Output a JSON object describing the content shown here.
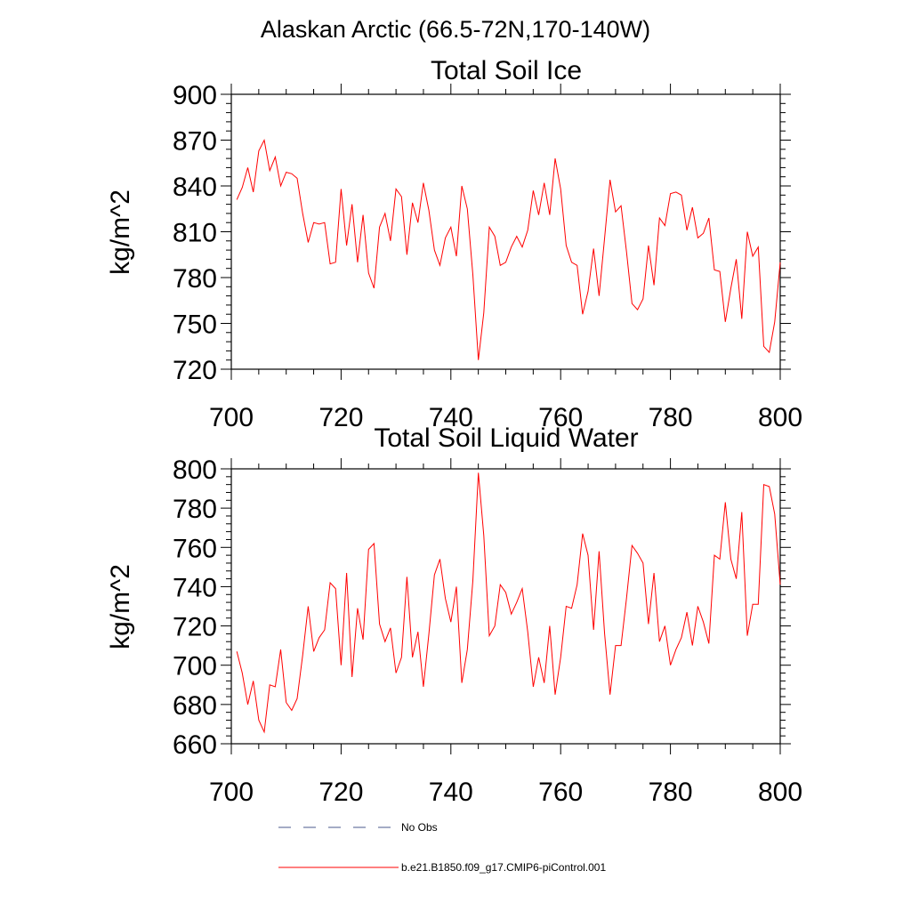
{
  "supertitle": "Alaskan Arctic (66.5-72N,170-140W)",
  "colors": {
    "model": "#ff0000",
    "obs": "#4b5a8c",
    "axis": "#000000"
  },
  "legend": [
    {
      "label": "No Obs",
      "style": "dashed",
      "color": "#4b5a8c"
    },
    {
      "label": "b.e21.B1850.f09_g17.CMIP6-piControl.001",
      "style": "solid",
      "color": "#ff0000"
    }
  ],
  "chart_data": [
    {
      "type": "line",
      "title": "Total Soil Ice",
      "xlabel": "",
      "ylabel": "kg/m^2",
      "xlim": [
        700,
        800
      ],
      "ylim": [
        720,
        900
      ],
      "xticks": [
        700,
        720,
        740,
        760,
        780,
        800
      ],
      "yticks": [
        720,
        750,
        780,
        810,
        840,
        870,
        900
      ],
      "x_start": 701,
      "series": [
        {
          "values": [
            831,
            839,
            852,
            836,
            863,
            870,
            850,
            859,
            840,
            849,
            848,
            845,
            822,
            803,
            816,
            815,
            816,
            789,
            790,
            838,
            801,
            828,
            790,
            821,
            783,
            773,
            813,
            822,
            804,
            838,
            833,
            795,
            829,
            816,
            842,
            824,
            798,
            788,
            806,
            813,
            794,
            840,
            825,
            782,
            726,
            757,
            813,
            807,
            788,
            790,
            800,
            807,
            800,
            811,
            837,
            821,
            842,
            821,
            858,
            838,
            801,
            790,
            788,
            756,
            771,
            799,
            768,
            806,
            844,
            823,
            827,
            797,
            763,
            759,
            766,
            801,
            775,
            819,
            814,
            835,
            836,
            834,
            811,
            826,
            806,
            809,
            819,
            785,
            784,
            751,
            773,
            792,
            753,
            810,
            794,
            800,
            735,
            731,
            751,
            790
          ]
        }
      ]
    },
    {
      "type": "line",
      "title": "Total Soil Liquid Water",
      "xlabel": "",
      "ylabel": "kg/m^2",
      "xlim": [
        700,
        800
      ],
      "ylim": [
        660,
        800
      ],
      "xticks": [
        700,
        720,
        740,
        760,
        780,
        800
      ],
      "yticks": [
        660,
        680,
        700,
        720,
        740,
        760,
        780,
        800
      ],
      "x_start": 701,
      "series": [
        {
          "values": [
            707,
            696,
            680,
            692,
            672,
            666,
            690,
            689,
            708,
            681,
            677,
            683,
            705,
            730,
            707,
            714,
            718,
            742,
            739,
            700,
            747,
            694,
            729,
            713,
            759,
            762,
            721,
            712,
            719,
            696,
            704,
            745,
            704,
            717,
            689,
            716,
            746,
            754,
            734,
            722,
            740,
            691,
            708,
            743,
            798,
            766,
            715,
            720,
            741,
            737,
            726,
            732,
            739,
            717,
            689,
            704,
            691,
            720,
            685,
            704,
            730,
            729,
            741,
            767,
            756,
            718,
            758,
            716,
            685,
            710,
            710,
            734,
            761,
            757,
            752,
            721,
            747,
            712,
            720,
            700,
            708,
            714,
            727,
            710,
            730,
            722,
            711,
            756,
            754,
            783,
            754,
            744,
            778,
            715,
            731,
            731,
            792,
            791,
            777,
            741
          ]
        }
      ]
    }
  ]
}
